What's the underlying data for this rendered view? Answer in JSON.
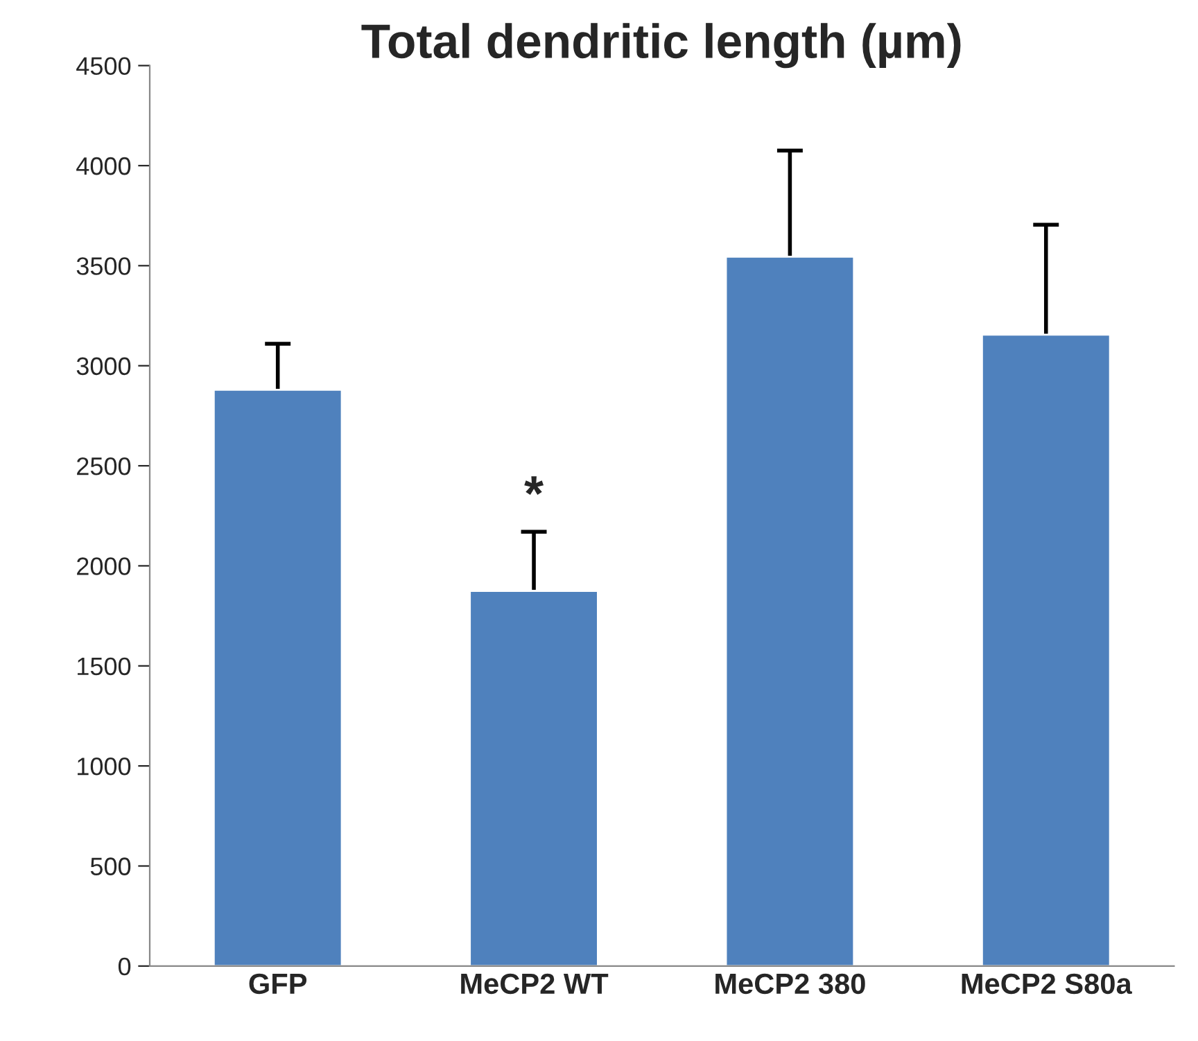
{
  "chart_data": {
    "type": "bar",
    "title": "Total dendritic length (µm)",
    "categories": [
      "GFP",
      "MeCP2 WT",
      "MeCP2 380",
      "MeCP2 S80a"
    ],
    "values": [
      2880,
      1875,
      3545,
      3155
    ],
    "errors": [
      [
        2880,
        3110
      ],
      [
        1875,
        2170
      ],
      [
        3545,
        4075
      ],
      [
        3155,
        3705
      ]
    ],
    "color": "#4f81bd",
    "ylim": [
      0,
      4500
    ],
    "yticks": [
      0,
      500,
      1000,
      1500,
      2000,
      2500,
      3000,
      3500,
      4000,
      4500
    ],
    "grid": false,
    "annotations": [
      "*"
    ]
  }
}
